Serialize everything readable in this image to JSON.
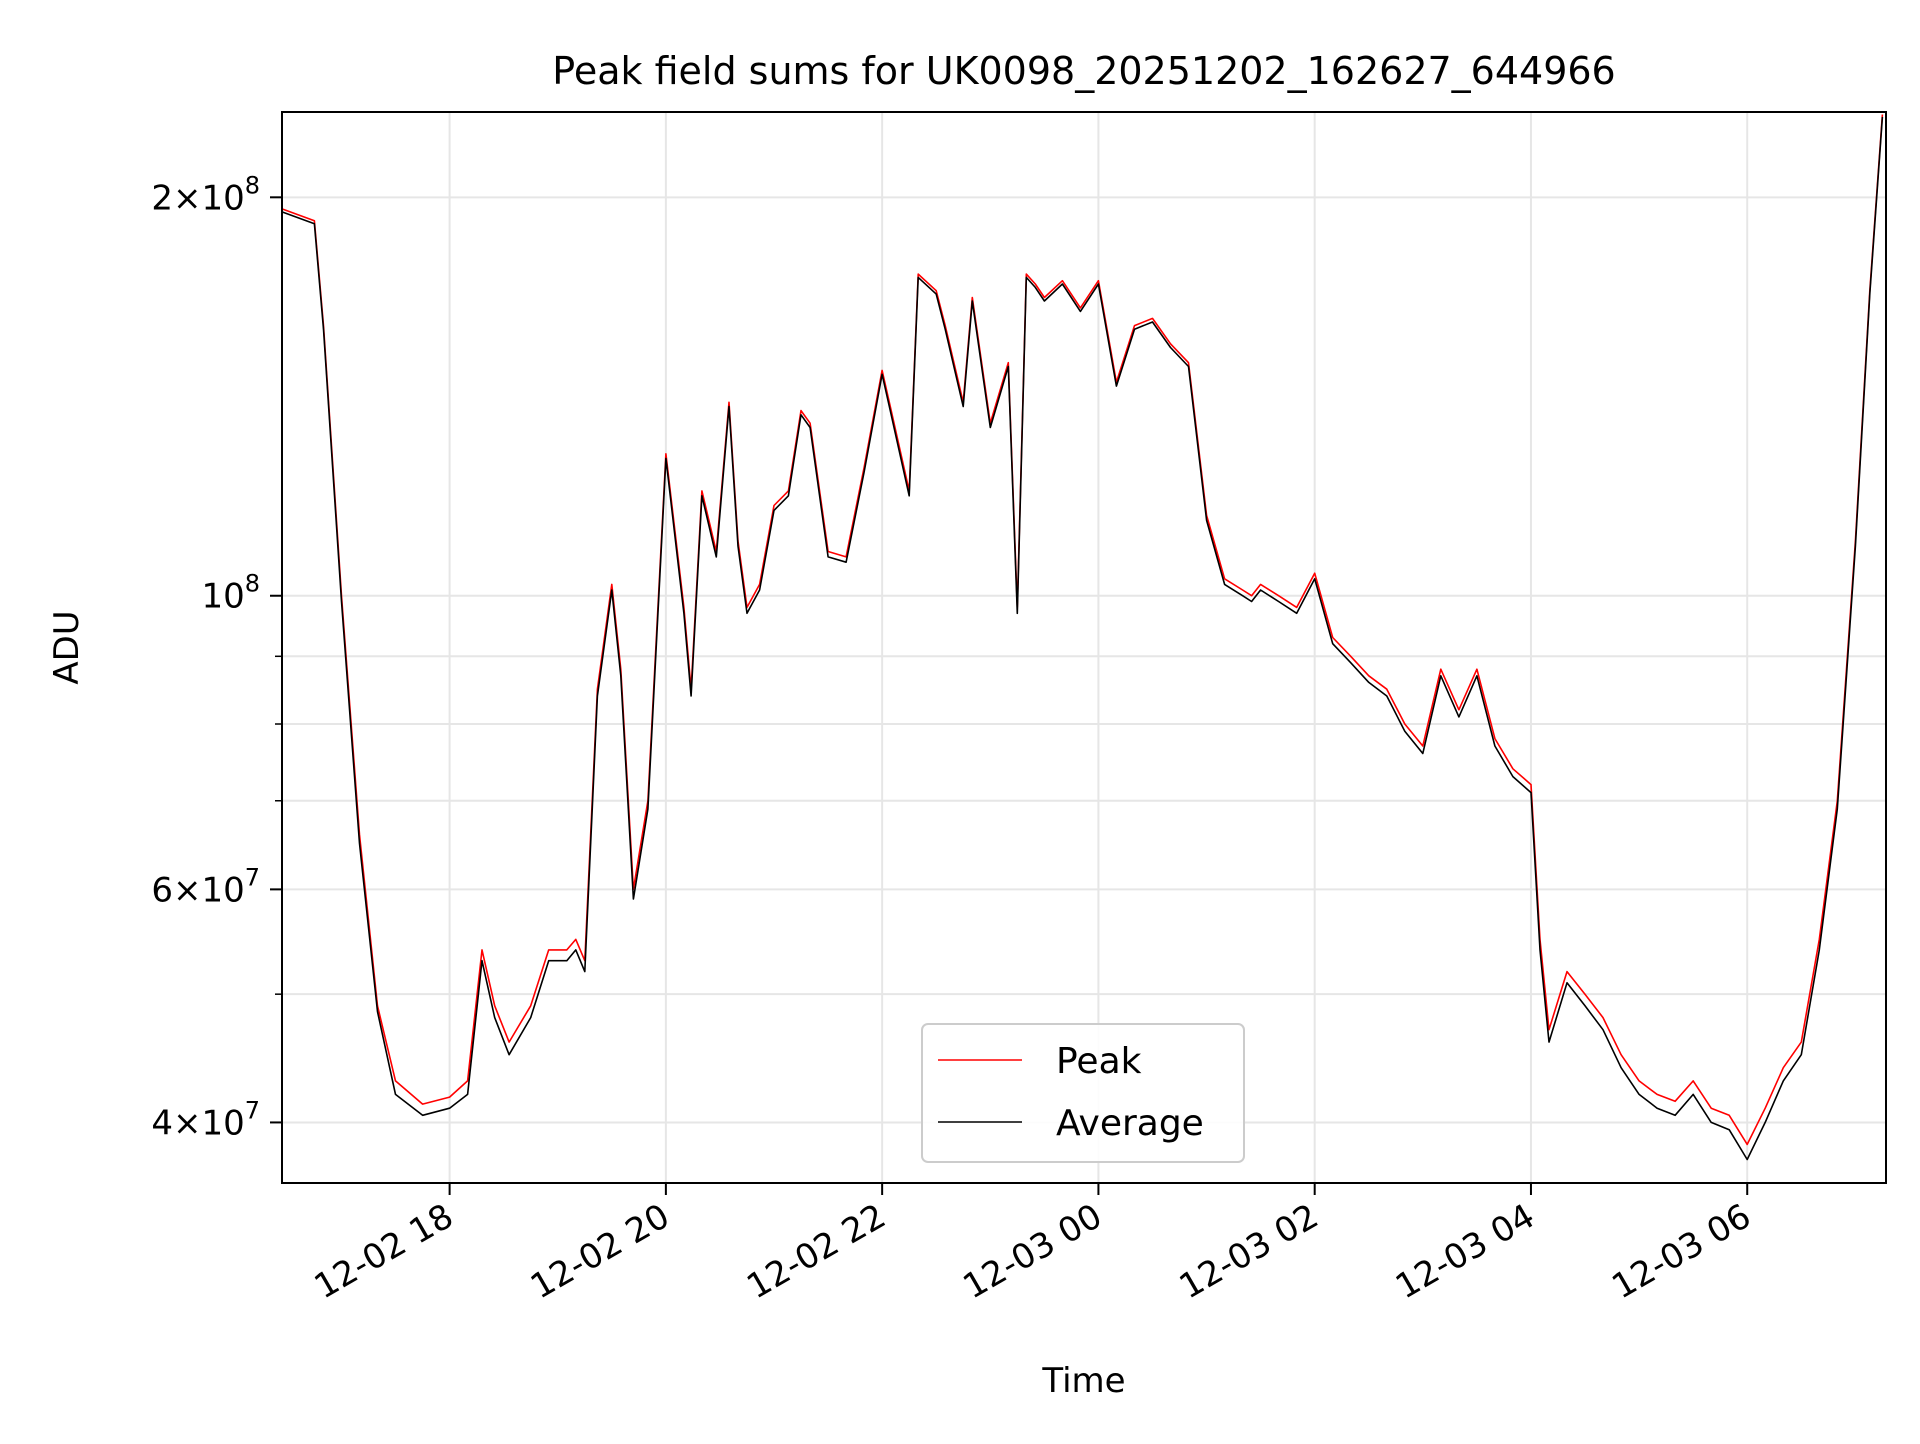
{
  "chart_data": {
    "type": "line",
    "title": "Peak field sums for UK0098_20251202_162627_644966",
    "xlabel": "Time",
    "ylabel": "ADU",
    "yscale": "log",
    "ylim": [
      36000000,
      232000000
    ],
    "xlim": [
      "2025-12-02 16:27",
      "2025-12-03 07:17"
    ],
    "grid": true,
    "legend_position": "lower center",
    "x_ticks": [
      {
        "value": "2025-12-02 18:00",
        "label": "12-02 18"
      },
      {
        "value": "2025-12-02 20:00",
        "label": "12-02 20"
      },
      {
        "value": "2025-12-02 22:00",
        "label": "12-02 22"
      },
      {
        "value": "2025-12-03 00:00",
        "label": "12-03 00"
      },
      {
        "value": "2025-12-03 02:00",
        "label": "12-03 02"
      },
      {
        "value": "2025-12-03 04:00",
        "label": "12-03 04"
      },
      {
        "value": "2025-12-03 06:00",
        "label": "12-03 06"
      }
    ],
    "y_ticks": [
      {
        "value": 40000000,
        "mant": "4",
        "exp": "7"
      },
      {
        "value": 60000000,
        "mant": "6",
        "exp": "7"
      },
      {
        "value": 100000000,
        "mant": "",
        "exp": "8"
      },
      {
        "value": 200000000,
        "mant": "2",
        "exp": "8"
      }
    ],
    "y_minor_ticks": [
      50000000,
      70000000,
      80000000,
      90000000
    ],
    "x": [
      "2025-12-02 16:27",
      "2025-12-02 16:45",
      "2025-12-02 16:50",
      "2025-12-02 17:00",
      "2025-12-02 17:10",
      "2025-12-02 17:20",
      "2025-12-02 17:30",
      "2025-12-02 17:45",
      "2025-12-02 18:00",
      "2025-12-02 18:10",
      "2025-12-02 18:18",
      "2025-12-02 18:25",
      "2025-12-02 18:33",
      "2025-12-02 18:45",
      "2025-12-02 18:55",
      "2025-12-02 19:05",
      "2025-12-02 19:10",
      "2025-12-02 19:15",
      "2025-12-02 19:22",
      "2025-12-02 19:30",
      "2025-12-02 19:35",
      "2025-12-02 19:42",
      "2025-12-02 19:50",
      "2025-12-02 20:00",
      "2025-12-02 20:10",
      "2025-12-02 20:14",
      "2025-12-02 20:20",
      "2025-12-02 20:28",
      "2025-12-02 20:35",
      "2025-12-02 20:40",
      "2025-12-02 20:45",
      "2025-12-02 20:52",
      "2025-12-02 21:00",
      "2025-12-02 21:08",
      "2025-12-02 21:15",
      "2025-12-02 21:20",
      "2025-12-02 21:30",
      "2025-12-02 21:40",
      "2025-12-02 21:50",
      "2025-12-02 22:00",
      "2025-12-02 22:05",
      "2025-12-02 22:15",
      "2025-12-02 22:20",
      "2025-12-02 22:30",
      "2025-12-02 22:35",
      "2025-12-02 22:45",
      "2025-12-02 22:50",
      "2025-12-02 23:00",
      "2025-12-02 23:10",
      "2025-12-02 23:15",
      "2025-12-02 23:20",
      "2025-12-02 23:25",
      "2025-12-02 23:30",
      "2025-12-02 23:40",
      "2025-12-02 23:50",
      "2025-12-03 00:00",
      "2025-12-03 00:10",
      "2025-12-03 00:20",
      "2025-12-03 00:30",
      "2025-12-03 00:40",
      "2025-12-03 00:50",
      "2025-12-03 01:00",
      "2025-12-03 01:10",
      "2025-12-03 01:20",
      "2025-12-03 01:25",
      "2025-12-03 01:30",
      "2025-12-03 01:40",
      "2025-12-03 01:50",
      "2025-12-03 02:00",
      "2025-12-03 02:10",
      "2025-12-03 02:20",
      "2025-12-03 02:30",
      "2025-12-03 02:40",
      "2025-12-03 02:50",
      "2025-12-03 03:00",
      "2025-12-03 03:10",
      "2025-12-03 03:20",
      "2025-12-03 03:30",
      "2025-12-03 03:40",
      "2025-12-03 03:50",
      "2025-12-03 04:00",
      "2025-12-03 04:05",
      "2025-12-03 04:10",
      "2025-12-03 04:20",
      "2025-12-03 04:30",
      "2025-12-03 04:40",
      "2025-12-03 04:50",
      "2025-12-03 05:00",
      "2025-12-03 05:10",
      "2025-12-03 05:20",
      "2025-12-03 05:30",
      "2025-12-03 05:40",
      "2025-12-03 05:50",
      "2025-12-03 06:00",
      "2025-12-03 06:10",
      "2025-12-03 06:20",
      "2025-12-03 06:30",
      "2025-12-03 06:40",
      "2025-12-03 06:50",
      "2025-12-03 07:00",
      "2025-12-03 07:08",
      "2025-12-03 07:15"
    ],
    "series": [
      {
        "name": "Peak",
        "color": "#ff0000",
        "values": [
          196000000,
          192000000,
          160000000,
          100000000,
          66000000,
          49000000,
          43000000,
          41300000,
          41800000,
          43000000,
          54000000,
          49000000,
          46000000,
          49000000,
          54000000,
          54000000,
          55000000,
          53000000,
          85000000,
          102000000,
          88000000,
          60000000,
          70000000,
          128000000,
          98000000,
          85000000,
          120000000,
          108000000,
          140000000,
          110000000,
          98000000,
          102000000,
          117000000,
          120000000,
          138000000,
          135000000,
          108000000,
          107000000,
          125000000,
          148000000,
          138000000,
          120000000,
          175000000,
          170000000,
          160000000,
          140000000,
          168000000,
          135000000,
          150000000,
          98000000,
          175000000,
          172000000,
          168000000,
          173000000,
          165000000,
          173000000,
          145000000,
          160000000,
          162000000,
          155000000,
          150000000,
          115000000,
          103000000,
          101000000,
          100000000,
          102000000,
          100000000,
          98000000,
          104000000,
          93000000,
          90000000,
          87000000,
          85000000,
          80000000,
          77000000,
          88000000,
          82000000,
          88000000,
          78000000,
          74000000,
          72000000,
          55000000,
          47000000,
          52000000,
          50000000,
          48000000,
          45000000,
          43000000,
          42000000,
          41500000,
          43000000,
          41000000,
          40500000,
          38500000,
          41000000,
          44000000,
          46000000,
          55000000,
          70000000,
          110000000,
          170000000,
          231000000
        ]
      },
      {
        "name": "Average",
        "color": "#000000",
        "values": [
          195000000,
          191000000,
          159000000,
          99000000,
          65000000,
          48500000,
          42000000,
          40500000,
          41000000,
          42000000,
          53000000,
          48000000,
          45000000,
          48000000,
          53000000,
          53000000,
          54000000,
          52000000,
          84000000,
          101000000,
          87000000,
          59000000,
          69000000,
          127000000,
          97000000,
          84000000,
          119000000,
          107000000,
          139000000,
          109000000,
          97000000,
          101000000,
          116000000,
          119000000,
          137000000,
          134000000,
          107000000,
          106000000,
          124000000,
          147000000,
          137000000,
          119000000,
          174000000,
          169000000,
          159000000,
          139000000,
          167000000,
          134000000,
          149000000,
          97000000,
          174000000,
          171000000,
          167000000,
          172000000,
          164000000,
          172000000,
          144000000,
          159000000,
          161000000,
          154000000,
          149000000,
          114000000,
          102000000,
          100000000,
          99000000,
          101000000,
          99000000,
          97000000,
          103000000,
          92000000,
          89000000,
          86000000,
          84000000,
          79000000,
          76000000,
          87000000,
          81000000,
          87000000,
          77000000,
          73000000,
          71000000,
          54000000,
          46000000,
          51000000,
          49000000,
          47000000,
          44000000,
          42000000,
          41000000,
          40500000,
          42000000,
          40000000,
          39500000,
          37500000,
          40000000,
          43000000,
          45000000,
          54000000,
          69000000,
          109000000,
          169000000,
          230000000
        ]
      }
    ]
  }
}
